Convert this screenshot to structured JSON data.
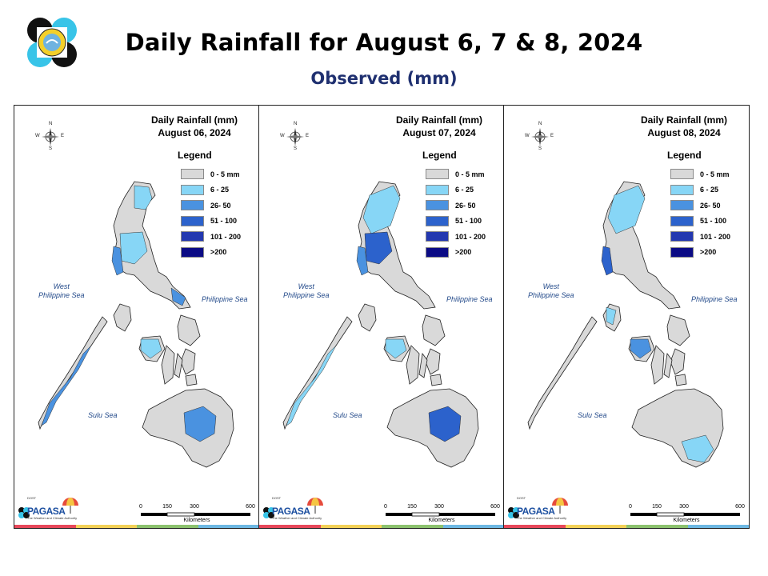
{
  "header": {
    "title": "Daily Rainfall for August 6, 7 & 8, 2024",
    "subtitle": "Observed (mm)"
  },
  "colors": {
    "class_0_5": "#d9d9d9",
    "class_6_25": "#87d6f6",
    "class_26_50": "#4a92e0",
    "class_51_100": "#2c62cc",
    "class_101_200": "#2338b0",
    "class_gt200": "#0b0b85",
    "title_blue": "#1f3070",
    "sea_label": "#234a8a"
  },
  "legend": {
    "title": "Legend",
    "items": [
      {
        "label": "0 - 5 mm",
        "color": "#d9d9d9"
      },
      {
        "label": "6 - 25",
        "color": "#87d6f6"
      },
      {
        "label": "26- 50",
        "color": "#4a92e0"
      },
      {
        "label": "51 - 100",
        "color": "#2c62cc"
      },
      {
        "label": "101 - 200",
        "color": "#2338b0"
      },
      {
        "label": ">200",
        "color": "#0b0b85"
      }
    ]
  },
  "sea_labels": {
    "west": "West\nPhilippine Sea",
    "east": "Philippine Sea",
    "south": "Sulu Sea"
  },
  "compass": {
    "n": "N",
    "s": "S",
    "e": "E",
    "w": "W"
  },
  "scale": {
    "ticks": [
      "0",
      "150",
      "300",
      "600"
    ],
    "unit": "Kilometers"
  },
  "branding": {
    "dost": "DOST",
    "name": "PAGASA",
    "tagline": "The Weather and Climate Authority"
  },
  "panels": [
    {
      "title": "Daily Rainfall (mm)",
      "date": "August 06, 2024",
      "rain_zones": [
        {
          "region": "northeast-luzon",
          "class": "6-25"
        },
        {
          "region": "central-luzon",
          "class": "6-25"
        },
        {
          "region": "west-luzon-coast",
          "class": "26-50"
        },
        {
          "region": "bicol",
          "class": "26-50"
        },
        {
          "region": "panay",
          "class": "6-25"
        },
        {
          "region": "palawan",
          "class": "26-50"
        },
        {
          "region": "central-mindanao",
          "class": "26-50"
        }
      ]
    },
    {
      "title": "Daily Rainfall (mm)",
      "date": "August 07, 2024",
      "rain_zones": [
        {
          "region": "north-luzon",
          "class": "6-25"
        },
        {
          "region": "central-luzon",
          "class": "51-100"
        },
        {
          "region": "west-luzon-coast",
          "class": "26-50"
        },
        {
          "region": "panay",
          "class": "6-25"
        },
        {
          "region": "palawan",
          "class": "6-25"
        },
        {
          "region": "central-mindanao",
          "class": "51-100"
        }
      ]
    },
    {
      "title": "Daily Rainfall (mm)",
      "date": "August 08, 2024",
      "rain_zones": [
        {
          "region": "north-luzon",
          "class": "6-25"
        },
        {
          "region": "west-luzon-coast",
          "class": "51-100"
        },
        {
          "region": "panay",
          "class": "26-50"
        },
        {
          "region": "southeast-mindanao",
          "class": "6-25"
        },
        {
          "region": "mindoro",
          "class": "6-25"
        }
      ]
    }
  ]
}
